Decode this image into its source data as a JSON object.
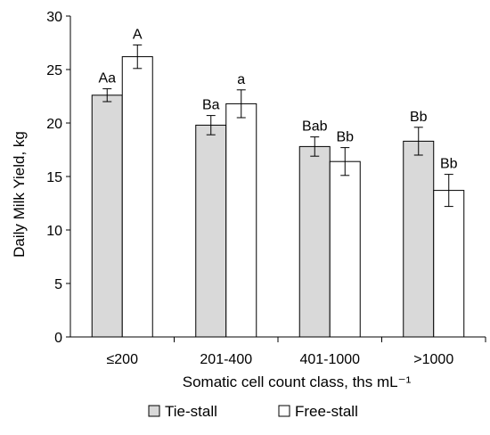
{
  "chart_data": {
    "type": "bar",
    "xlabel": "Somatic cell count class, ths mL⁻¹",
    "ylabel": "Daily Milk Yield, kg",
    "ylim": [
      0,
      30
    ],
    "yticks": [
      "0",
      "5",
      "10",
      "15",
      "20",
      "25",
      "30"
    ],
    "categories": [
      "≤200",
      "201-400",
      "401-1000",
      ">1000"
    ],
    "legend_position": "bottom",
    "grid": false,
    "series": [
      {
        "name": "Tie-stall",
        "color": "#d9d9d9",
        "values": [
          22.6,
          19.8,
          17.8,
          18.3
        ],
        "errors": [
          0.6,
          0.9,
          0.9,
          1.3
        ],
        "labels": [
          "Aa",
          "Ba",
          "Bab",
          "Bb"
        ]
      },
      {
        "name": "Free-stall",
        "color": "#ffffff",
        "values": [
          26.2,
          21.8,
          16.4,
          13.7
        ],
        "errors": [
          1.1,
          1.3,
          1.3,
          1.5
        ],
        "labels": [
          "A",
          "a",
          "Bb",
          "Bb"
        ]
      }
    ]
  }
}
